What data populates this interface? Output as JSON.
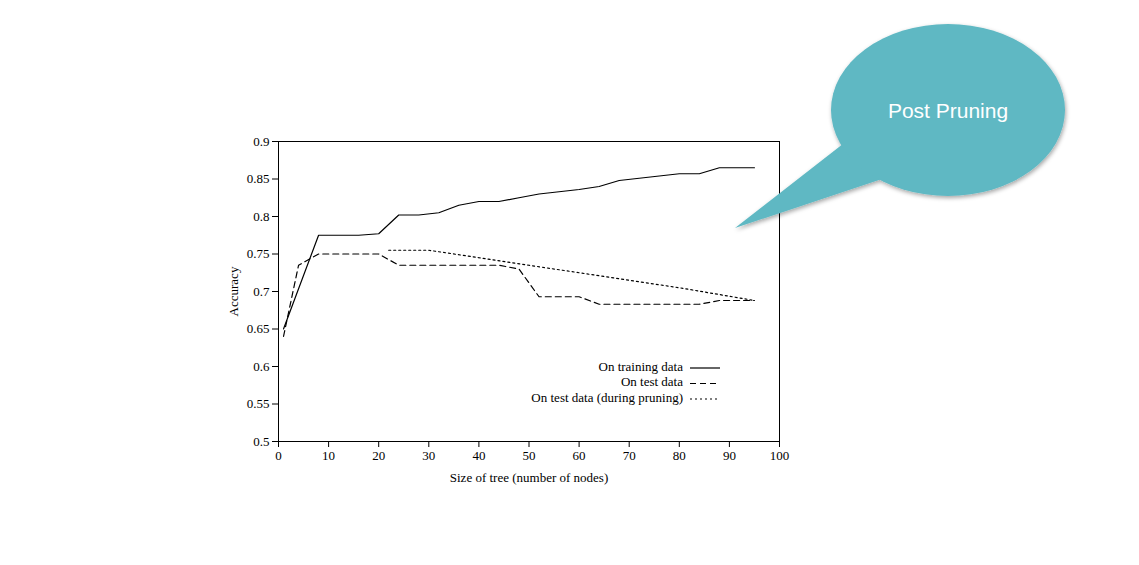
{
  "chart_data": {
    "type": "line",
    "x_label": "Size of tree (number of nodes)",
    "y_label": "Accuracy",
    "annotation": "Post Pruning",
    "xlim": [
      0,
      100
    ],
    "xticks": [
      0,
      10,
      20,
      30,
      40,
      50,
      60,
      70,
      80,
      90,
      100
    ],
    "ylim": [
      0.5,
      0.9
    ],
    "yticks": [
      0.5,
      0.55,
      0.6,
      0.65,
      0.7,
      0.75,
      0.8,
      0.85,
      0.9
    ],
    "legend": "lower right",
    "series": [
      {
        "name": "On training data",
        "color": "#000000",
        "line_style": "solid",
        "x": [
          1,
          8,
          16,
          20,
          24,
          28,
          32,
          36,
          40,
          44,
          48,
          52,
          56,
          60,
          64,
          68,
          72,
          76,
          80,
          84,
          88,
          95
        ],
        "values": [
          0.65,
          0.775,
          0.775,
          0.777,
          0.802,
          0.802,
          0.805,
          0.815,
          0.82,
          0.82,
          0.825,
          0.83,
          0.833,
          0.836,
          0.84,
          0.848,
          0.851,
          0.854,
          0.857,
          0.857,
          0.865,
          0.865
        ]
      },
      {
        "name": "On test data",
        "color": "#000000",
        "line_style": "dashed",
        "x": [
          1,
          4,
          8,
          12,
          16,
          20,
          24,
          28,
          32,
          36,
          40,
          44,
          48,
          52,
          56,
          60,
          64,
          68,
          72,
          76,
          80,
          84,
          88,
          95
        ],
        "values": [
          0.64,
          0.735,
          0.75,
          0.75,
          0.75,
          0.75,
          0.735,
          0.735,
          0.735,
          0.735,
          0.735,
          0.735,
          0.73,
          0.693,
          0.693,
          0.693,
          0.683,
          0.683,
          0.683,
          0.683,
          0.683,
          0.683,
          0.688,
          0.688
        ]
      },
      {
        "name": "On test data (during pruning)",
        "color": "#000000",
        "line_style": "dotted",
        "x": [
          22,
          30,
          40,
          50,
          60,
          70,
          80,
          95
        ],
        "values": [
          0.755,
          0.755,
          0.745,
          0.735,
          0.725,
          0.715,
          0.705,
          0.688
        ]
      }
    ]
  }
}
